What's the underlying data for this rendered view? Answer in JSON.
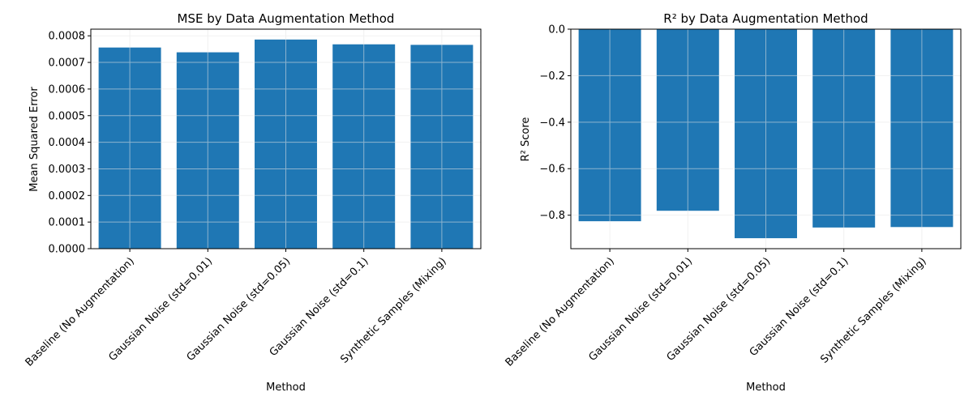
{
  "colors": {
    "bar": "#1f77b4",
    "grid": "#e5e5e5",
    "axis": "#000000",
    "background": "#ffffff"
  },
  "chart_data": [
    {
      "type": "bar",
      "title": "MSE by Data Augmentation Method",
      "xlabel": "Method",
      "ylabel": "Mean Squared Error",
      "categories": [
        "Baseline (No Augmentation)",
        "Gaussian Noise (std=0.01)",
        "Gaussian Noise (std=0.05)",
        "Gaussian Noise (std=0.1)",
        "Synthetic Samples (Mixing)"
      ],
      "values": [
        0.000756,
        0.000738,
        0.000786,
        0.000768,
        0.000766
      ],
      "ylim": [
        0,
        0.000825
      ],
      "yticks": [
        "0.0000",
        "0.0001",
        "0.0002",
        "0.0003",
        "0.0004",
        "0.0005",
        "0.0006",
        "0.0007",
        "0.0008"
      ],
      "grid": true
    },
    {
      "type": "bar",
      "title": "R² by Data Augmentation Method",
      "xlabel": "Method",
      "ylabel": "R² Score",
      "categories": [
        "Baseline (No Augmentation)",
        "Gaussian Noise (std=0.01)",
        "Gaussian Noise (std=0.05)",
        "Gaussian Noise (std=0.1)",
        "Synthetic Samples (Mixing)"
      ],
      "values": [
        -0.826,
        -0.781,
        -0.899,
        -0.853,
        -0.851
      ],
      "ylim": [
        -0.944,
        0.0
      ],
      "yticks": [
        "−0.8",
        "−0.6",
        "−0.4",
        "−0.2",
        "0.0"
      ],
      "grid": true
    }
  ]
}
